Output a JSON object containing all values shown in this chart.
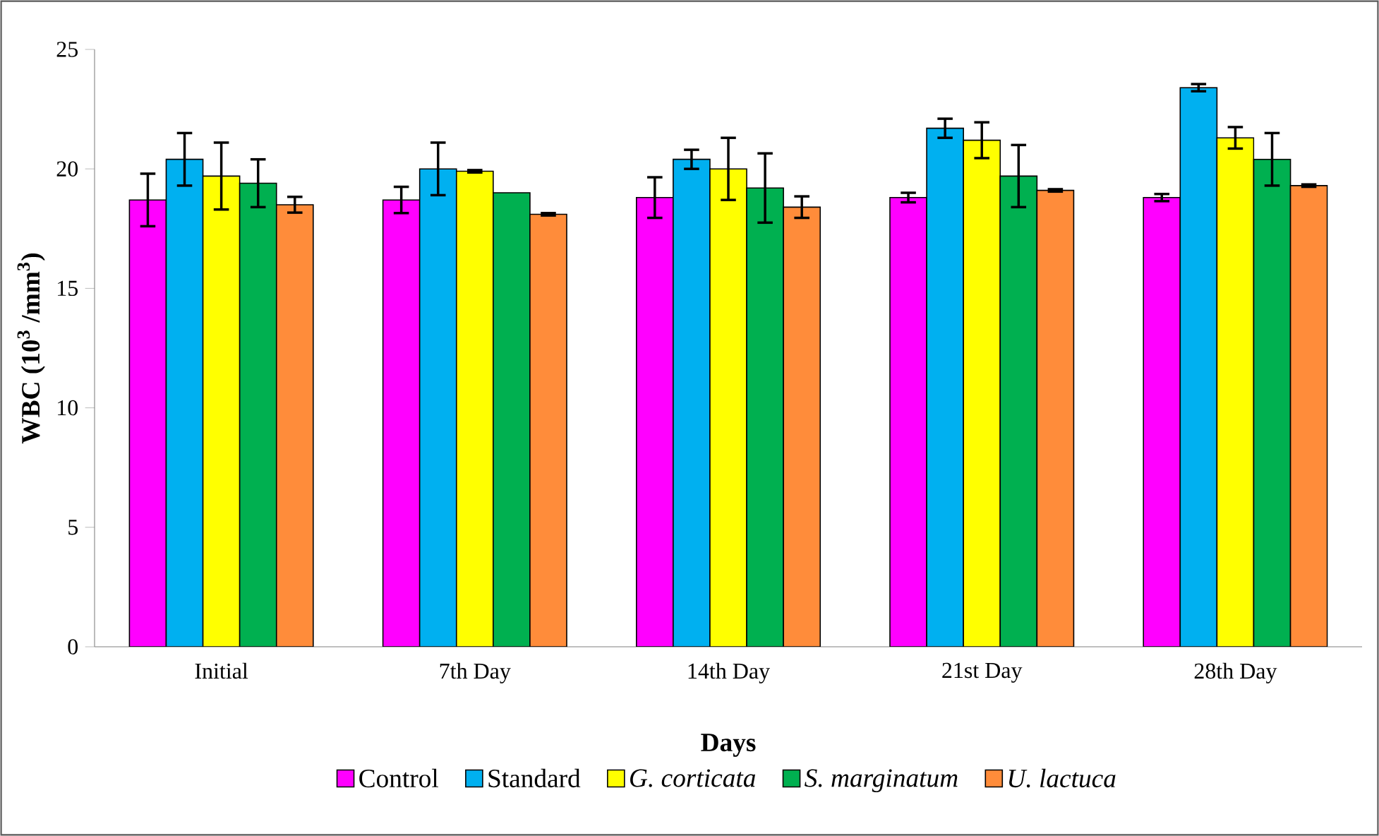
{
  "chart_data": {
    "type": "bar",
    "xlabel": "Days",
    "ylabel": "WBC (10$^{3}$ /mm$^{3}$)",
    "categories": [
      "Initial",
      "7th Day",
      "14th Day",
      "21st Day",
      "28th Day"
    ],
    "series": [
      {
        "name": "Control",
        "color": "#ff00ff",
        "values": [
          18.7,
          18.7,
          18.8,
          18.8,
          18.8
        ],
        "errors": [
          1.1,
          0.55,
          0.85,
          0.2,
          0.15
        ]
      },
      {
        "name": "Standard",
        "color": "#00b0f0",
        "values": [
          20.4,
          20.0,
          20.4,
          21.7,
          23.4
        ],
        "errors": [
          1.1,
          1.1,
          0.4,
          0.4,
          0.15
        ]
      },
      {
        "name": "*G. corticata*",
        "color": "#ffff00",
        "values": [
          19.7,
          19.9,
          20.0,
          21.2,
          21.3
        ],
        "errors": [
          1.4,
          0.05,
          1.3,
          0.75,
          0.45
        ]
      },
      {
        "name": "*S. marginatum*",
        "color": "#00b050",
        "values": [
          19.4,
          19.0,
          19.2,
          19.7,
          20.4
        ],
        "errors": [
          1.0,
          null,
          1.45,
          1.3,
          1.1
        ]
      },
      {
        "name": "*U. lactuca*",
        "color": "#ff8c3a",
        "values": [
          18.5,
          18.1,
          18.4,
          19.1,
          19.3
        ],
        "errors": [
          0.33,
          0.05,
          0.45,
          0.05,
          0.05
        ]
      }
    ],
    "ylim": [
      0,
      25
    ],
    "yticks": [
      0,
      5,
      10,
      15,
      20,
      25
    ],
    "grid": false,
    "legend": "bottom"
  }
}
